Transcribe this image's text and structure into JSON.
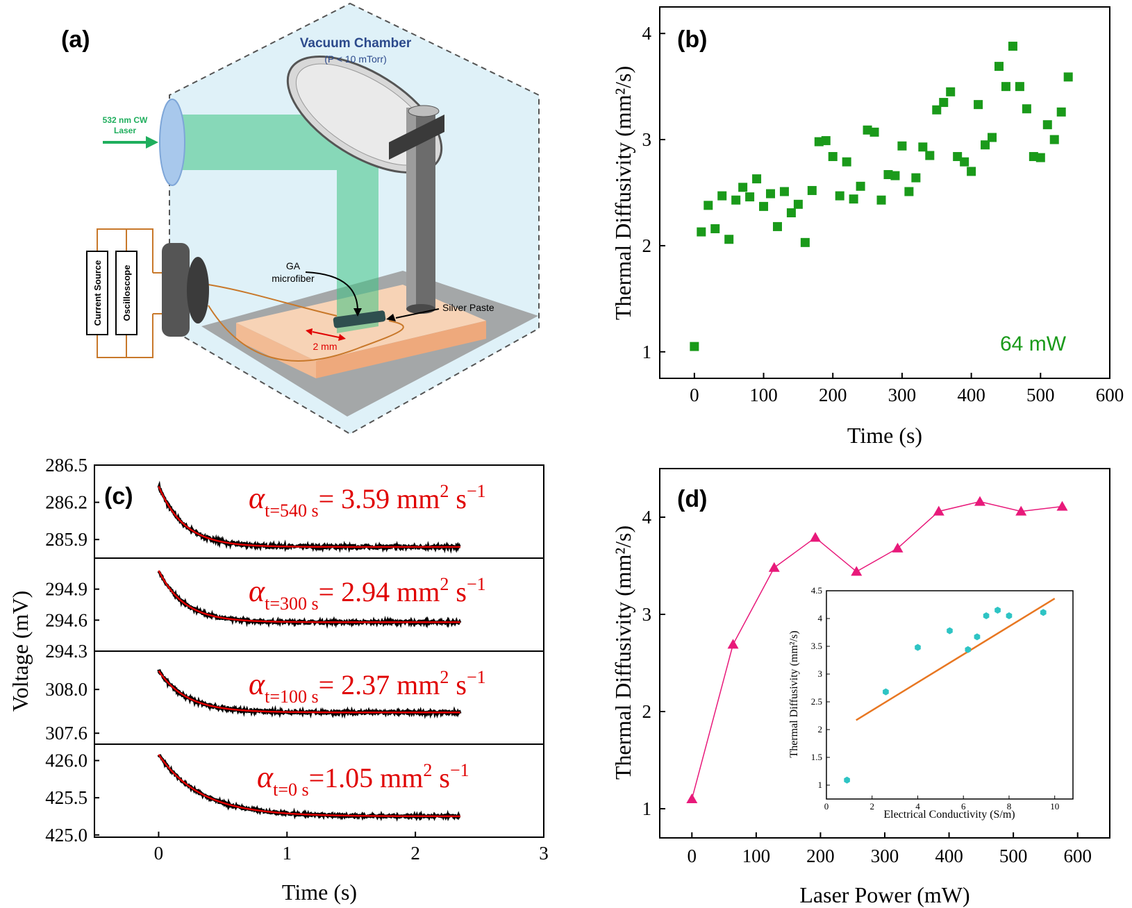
{
  "panel_a": {
    "label": "(a)",
    "chamber_title": "Vacuum Chamber",
    "chamber_sub": "(P < 10 mTorr)",
    "laser_line1": "532 nm CW",
    "laser_line2": "Laser",
    "instrument1": "Current Source",
    "instrument2": "Oscilloscope",
    "ga_line1": "GA",
    "ga_line2": "microfiber",
    "silver_paste": "Silver Paste",
    "scale": "2 mm",
    "colors": {
      "chamber": "#dff1f8",
      "beam": "#3ec383",
      "wire": "#c8782a",
      "stage": "#f5c9a6",
      "scale": "#e00000",
      "title": "#2c4a8c"
    }
  },
  "chart_data": [
    {
      "id": "b",
      "type": "scatter",
      "label": "(b)",
      "annotation": "64 mW",
      "xlabel": "Time (s)",
      "ylabel": "Thermal Diffusivity (mm²/s)",
      "xlim": [
        -50,
        600
      ],
      "ylim": [
        0.75,
        4.25
      ],
      "xticks": [
        0,
        100,
        200,
        300,
        400,
        500,
        600
      ],
      "yticks": [
        1,
        2,
        3,
        4
      ],
      "marker_color": "#1a9a1a",
      "x": [
        0,
        10,
        20,
        30,
        40,
        50,
        60,
        70,
        80,
        90,
        100,
        110,
        120,
        130,
        140,
        150,
        160,
        170,
        180,
        190,
        200,
        210,
        220,
        230,
        240,
        250,
        260,
        270,
        280,
        290,
        300,
        310,
        320,
        330,
        340,
        350,
        360,
        370,
        380,
        390,
        400,
        410,
        420,
        430,
        440,
        450,
        460,
        470,
        480,
        490,
        500,
        510,
        520,
        530,
        540
      ],
      "y": [
        1.05,
        2.13,
        2.38,
        2.16,
        2.47,
        2.06,
        2.43,
        2.55,
        2.46,
        2.63,
        2.37,
        2.49,
        2.18,
        2.51,
        2.31,
        2.39,
        2.03,
        2.52,
        2.98,
        2.99,
        2.84,
        2.47,
        2.79,
        2.44,
        2.56,
        3.09,
        3.07,
        2.43,
        2.67,
        2.66,
        2.94,
        2.51,
        2.64,
        2.93,
        2.85,
        3.28,
        3.35,
        3.45,
        2.84,
        2.79,
        2.7,
        3.33,
        2.95,
        3.02,
        3.69,
        3.5,
        3.88,
        3.5,
        3.29,
        2.84,
        2.83,
        3.14,
        3.0,
        3.26,
        3.59
      ]
    },
    {
      "id": "c",
      "type": "line",
      "label": "(c)",
      "xlabel": "Time (s)",
      "ylabel": "Voltage (mV)",
      "xlim": [
        -0.5,
        3
      ],
      "xticks": [
        0,
        1,
        2,
        3
      ],
      "fit_color": "#e00000",
      "data_color": "#000000",
      "series": [
        {
          "name": "t=540 s",
          "ylim": [
            285.75,
            286.5
          ],
          "yticks": [
            "286.5",
            "286.2",
            "285.9"
          ],
          "ytick_values": [
            286.5,
            286.2,
            285.9
          ],
          "v0": 286.33,
          "vinf": 285.84,
          "tau": 0.2,
          "noise": 0.012,
          "ann_value": "= 3.59 mm",
          "ann_sub": "t=540 s"
        },
        {
          "name": "t=300 s",
          "ylim": [
            294.3,
            295.2
          ],
          "yticks": [
            "294.9",
            "294.6",
            "294.3"
          ],
          "ytick_values": [
            294.9,
            294.6,
            294.3
          ],
          "v0": 295.08,
          "vinf": 294.58,
          "tau": 0.2,
          "noise": 0.012,
          "ann_value": "= 2.94 mm",
          "ann_sub": "t=300 s"
        },
        {
          "name": "t=100 s",
          "ylim": [
            307.5,
            308.35
          ],
          "yticks": [
            "308.0",
            "307.6"
          ],
          "ytick_values": [
            308.0,
            307.6
          ],
          "v0": 308.17,
          "vinf": 307.79,
          "tau": 0.22,
          "noise": 0.012,
          "ann_value": "= 2.37 mm",
          "ann_sub": "t=100 s"
        },
        {
          "name": "t=0 s",
          "ylim": [
            424.97,
            426.22
          ],
          "yticks": [
            "426.0",
            "425.5",
            "425.0"
          ],
          "ytick_values": [
            426.0,
            425.5,
            425.0
          ],
          "v0": 426.08,
          "vinf": 425.25,
          "tau": 0.33,
          "noise": 0.015,
          "ann_value": "=1.05 mm",
          "ann_sub": "t=0 s"
        }
      ],
      "unit_suffix": "s",
      "exp2": "2",
      "exp_m1": "−1"
    },
    {
      "id": "d",
      "type": "line",
      "label": "(d)",
      "xlabel": "Laser Power (mW)",
      "ylabel": "Thermal Diffusivity (mm²/s)",
      "xlim": [
        -50,
        650
      ],
      "ylim": [
        0.7,
        4.5
      ],
      "xticks": [
        0,
        100,
        200,
        300,
        400,
        500,
        600
      ],
      "yticks": [
        1,
        2,
        3,
        4
      ],
      "marker_color": "#e8197a",
      "x": [
        0,
        64,
        128,
        192,
        256,
        320,
        384,
        448,
        512,
        576
      ],
      "y": [
        1.1,
        2.69,
        3.48,
        3.79,
        3.44,
        3.68,
        4.06,
        4.16,
        4.06,
        4.11
      ],
      "inset": {
        "type": "scatter",
        "xlabel": "Electrical Conductivity (S/m)",
        "ylabel": "Thermal Diffusivity (mm²/s)",
        "xlim": [
          0,
          10.8
        ],
        "ylim": [
          0.75,
          4.5
        ],
        "xticks": [
          0,
          2,
          4,
          6,
          8,
          10
        ],
        "yticks": [
          "1",
          "1.5",
          "2",
          "2.5",
          "3",
          "3.5",
          "4",
          "4.5"
        ],
        "ytick_values": [
          1,
          1.5,
          2,
          2.5,
          3,
          3.5,
          4,
          4.5
        ],
        "marker_color": "#2ec4c4",
        "fit_color": "#e87722",
        "x": [
          0.9,
          2.6,
          4.0,
          5.4,
          6.2,
          6.6,
          7.0,
          7.5,
          8.0,
          9.5
        ],
        "y": [
          1.09,
          2.68,
          3.48,
          3.78,
          3.44,
          3.67,
          4.05,
          4.15,
          4.05,
          4.11
        ],
        "fit": {
          "x": [
            1.3,
            10.0
          ],
          "y": [
            2.17,
            4.36
          ]
        }
      }
    }
  ]
}
